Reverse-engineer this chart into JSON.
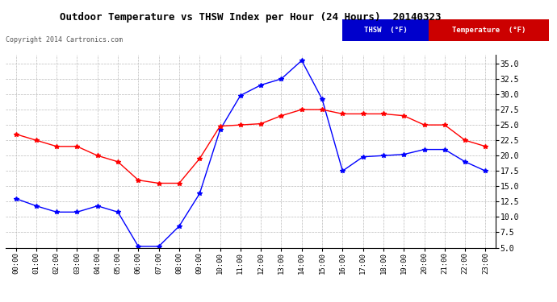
{
  "title": "Outdoor Temperature vs THSW Index per Hour (24 Hours)  20140323",
  "copyright": "Copyright 2014 Cartronics.com",
  "hours": [
    "00:00",
    "01:00",
    "02:00",
    "03:00",
    "04:00",
    "05:00",
    "06:00",
    "07:00",
    "08:00",
    "09:00",
    "10:00",
    "11:00",
    "12:00",
    "13:00",
    "14:00",
    "15:00",
    "16:00",
    "17:00",
    "18:00",
    "19:00",
    "20:00",
    "21:00",
    "22:00",
    "23:00"
  ],
  "thsw": [
    13.0,
    11.8,
    10.8,
    10.8,
    11.8,
    10.8,
    5.2,
    5.2,
    8.5,
    13.8,
    24.2,
    29.8,
    31.5,
    32.5,
    35.5,
    29.2,
    17.5,
    19.8,
    20.0,
    20.2,
    21.0,
    21.0,
    19.0,
    17.5
  ],
  "temperature": [
    23.5,
    22.5,
    21.5,
    21.5,
    20.0,
    19.0,
    16.0,
    15.5,
    15.5,
    19.5,
    24.8,
    25.0,
    25.2,
    26.5,
    27.5,
    27.5,
    26.8,
    26.8,
    26.8,
    26.5,
    25.0,
    25.0,
    22.5,
    21.5
  ],
  "thsw_color": "#0000ff",
  "temp_color": "#ff0000",
  "background_color": "#ffffff",
  "grid_color": "#bbbbbb",
  "ylim": [
    5.0,
    36.5
  ],
  "yticks": [
    5.0,
    7.5,
    10.0,
    12.5,
    15.0,
    17.5,
    20.0,
    22.5,
    25.0,
    27.5,
    30.0,
    32.5,
    35.0
  ],
  "legend_thsw_bg": "#0000cc",
  "legend_temp_bg": "#cc0000",
  "marker": "*",
  "markersize": 4
}
